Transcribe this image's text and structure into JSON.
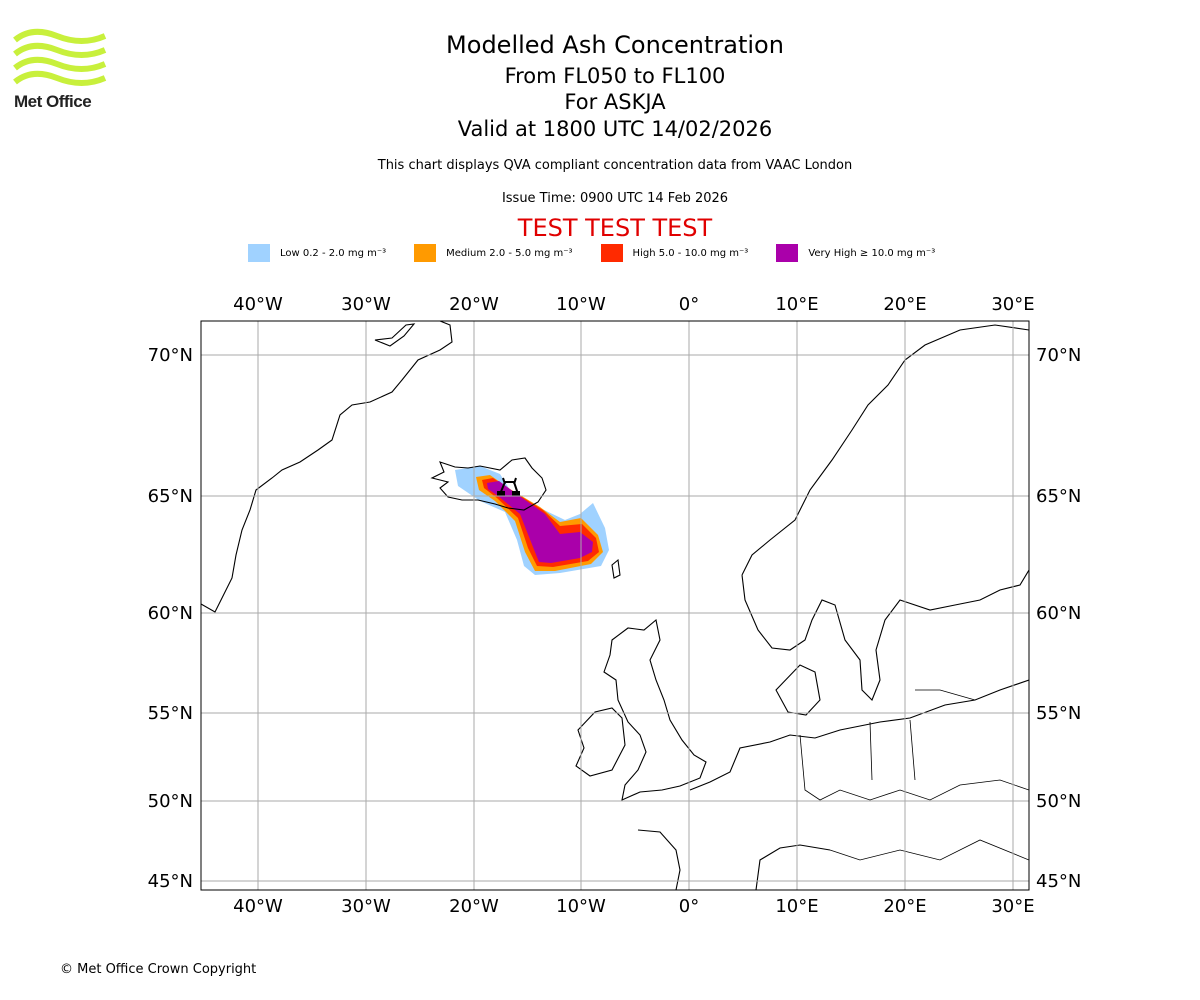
{
  "brand": {
    "logo_text": "Met Office",
    "logo_color": "#c8f03c"
  },
  "header": {
    "title": "Modelled Ash Concentration",
    "levels": "From FL050 to FL100",
    "volcano": "For ASKJA",
    "valid": "Valid at 1800 UTC 14/02/2026",
    "note": "This chart displays QVA compliant concentration data from VAAC London",
    "issue": "Issue Time: 0900 UTC 14 Feb 2026",
    "test": "TEST TEST TEST"
  },
  "legend": [
    {
      "label": "Low 0.2 - 2.0 mg m⁻³",
      "color": "#a0d2ff"
    },
    {
      "label": "Medium 2.0 - 5.0 mg m⁻³",
      "color": "#ff9a00"
    },
    {
      "label": "High 5.0 - 10.0 mg m⁻³",
      "color": "#ff2a00"
    },
    {
      "label": "Very High ≥ 10.0 mg m⁻³",
      "color": "#aa00aa"
    }
  ],
  "chart_data": {
    "type": "map",
    "projection": "mercator",
    "lon_range": [
      -45.3,
      31.5
    ],
    "lat_range": [
      44.7,
      71.2
    ],
    "lon_ticks": [
      "40°W",
      "30°W",
      "20°W",
      "10°W",
      "0°",
      "10°E",
      "20°E",
      "30°E"
    ],
    "lat_ticks": [
      "70°N",
      "65°N",
      "60°N",
      "55°N",
      "50°N",
      "45°N"
    ],
    "grid": true,
    "volcano_marker": {
      "name": "ASKJA",
      "lon": -16.7,
      "lat": 65.0
    },
    "ash_extent_levels": [
      "Low",
      "Medium",
      "High",
      "Very High"
    ]
  },
  "footer": {
    "copyright": "© Met Office Crown Copyright"
  }
}
